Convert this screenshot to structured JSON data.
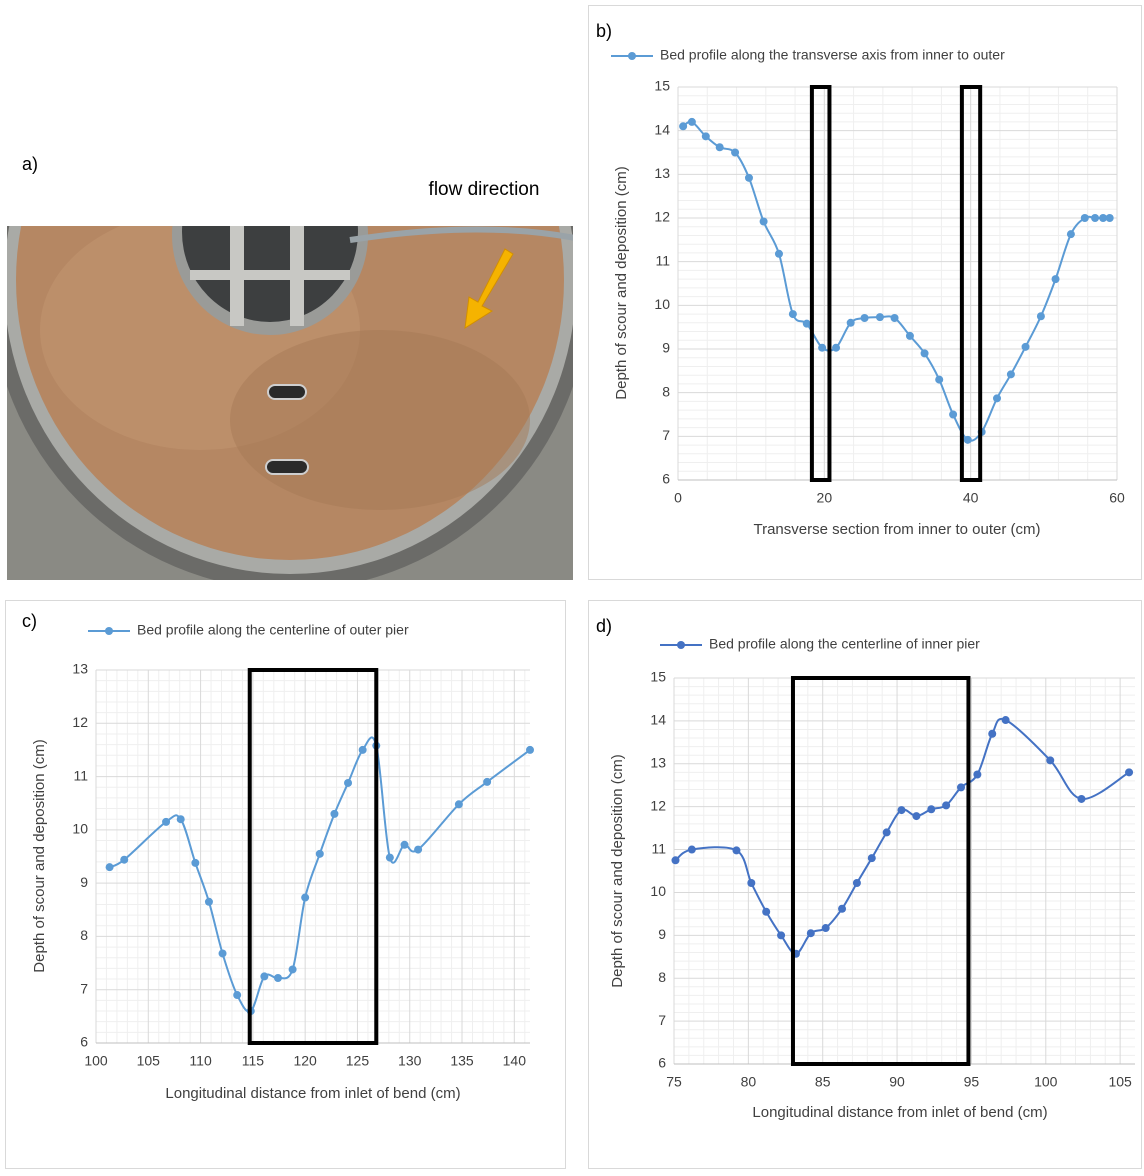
{
  "panel_a": {
    "label": "a)",
    "annotation": "flow direction"
  },
  "chart_data": [
    {
      "type": "line",
      "label": "b)",
      "x_label": "Transverse section from inner to outer (cm)",
      "y_label": "Depth of scour and deposition (cm)",
      "x": [
        0.7,
        1.9,
        3.8,
        5.7,
        7.8,
        9.7,
        11.7,
        13.8,
        15.7,
        17.6,
        19.7,
        21.6,
        23.6,
        25.5,
        27.6,
        29.6,
        31.7,
        33.7,
        35.7,
        37.6,
        39.6,
        41.5,
        43.6,
        45.5,
        47.5,
        49.6,
        51.6,
        53.7,
        55.6,
        57.0,
        58.1,
        59.0
      ],
      "series": [
        {
          "name": "Bed profile along the transverse axis from inner to outer",
          "color": "#5b9bd5",
          "values": [
            14.1,
            14.2,
            13.87,
            13.62,
            13.5,
            12.92,
            11.92,
            11.18,
            9.8,
            9.58,
            9.03,
            9.03,
            9.6,
            9.71,
            9.73,
            9.71,
            9.3,
            8.9,
            8.3,
            7.5,
            6.92,
            7.1,
            7.87,
            8.42,
            9.05,
            9.75,
            10.6,
            11.63,
            12.0,
            12.0,
            12.0,
            12.0
          ]
        }
      ],
      "xlim": [
        0,
        60
      ],
      "xticks": [
        0,
        20,
        40,
        60
      ],
      "ylim": [
        6,
        15
      ],
      "yticks": [
        6,
        7,
        8,
        9,
        10,
        11,
        12,
        13,
        14,
        15
      ],
      "grid": true,
      "minor_grid": true,
      "smooth": true,
      "highlights": [
        [
          18.3,
          20.7
        ],
        [
          38.8,
          41.3
        ]
      ]
    },
    {
      "type": "line",
      "label": "c)",
      "x_label": "Longitudinal distance from inlet of bend (cm)",
      "y_label": "Depth of scour and deposition (cm)",
      "x": [
        101.3,
        102.7,
        106.7,
        108.1,
        109.5,
        110.8,
        112.1,
        113.5,
        114.8,
        116.1,
        117.4,
        118.8,
        120.0,
        121.4,
        122.8,
        124.1,
        125.5,
        126.8,
        128.1,
        129.5,
        130.8,
        134.7,
        137.4,
        141.5
      ],
      "series": [
        {
          "name": "Bed profile along the centerline of outer pier",
          "color": "#5b9bd5",
          "values": [
            9.3,
            9.44,
            10.15,
            10.2,
            9.38,
            8.65,
            7.68,
            6.9,
            6.6,
            7.25,
            7.22,
            7.38,
            8.73,
            9.55,
            10.3,
            10.88,
            11.5,
            11.58,
            9.48,
            9.72,
            9.63,
            10.48,
            10.9,
            11.5
          ]
        }
      ],
      "xlim": [
        100,
        141.5
      ],
      "xticks": [
        100,
        105,
        110,
        115,
        120,
        125,
        130,
        135,
        140
      ],
      "ylim": [
        6,
        13
      ],
      "yticks": [
        6,
        7,
        8,
        9,
        10,
        11,
        12,
        13
      ],
      "grid": true,
      "minor_grid": true,
      "smooth": true,
      "highlights": [
        [
          114.7,
          126.8
        ]
      ]
    },
    {
      "type": "line",
      "label": "d)",
      "x_label": "Longitudinal distance from inlet of bend (cm)",
      "y_label": "Depth of scour and deposition (cm)",
      "x": [
        75.1,
        76.2,
        79.2,
        80.2,
        81.2,
        82.2,
        83.2,
        84.2,
        85.2,
        86.3,
        87.3,
        88.3,
        89.3,
        90.3,
        91.3,
        92.3,
        93.3,
        94.3,
        95.4,
        96.4,
        97.3,
        100.3,
        102.4,
        105.6
      ],
      "series": [
        {
          "name": "Bed profile along the centerline of inner pier",
          "color": "#4472c4",
          "values": [
            10.75,
            11.0,
            10.98,
            10.22,
            9.55,
            9.0,
            8.57,
            9.05,
            9.17,
            9.62,
            10.22,
            10.8,
            11.4,
            11.92,
            11.78,
            11.94,
            12.03,
            12.45,
            12.75,
            13.7,
            14.02,
            13.08,
            12.18,
            12.8
          ]
        }
      ],
      "xlim": [
        75,
        106
      ],
      "xticks": [
        75,
        80,
        85,
        90,
        95,
        100,
        105
      ],
      "ylim": [
        6,
        15
      ],
      "yticks": [
        6,
        7,
        8,
        9,
        10,
        11,
        12,
        13,
        14,
        15
      ],
      "grid": true,
      "minor_grid": true,
      "smooth": true,
      "highlights": [
        [
          83.0,
          94.8
        ]
      ]
    }
  ]
}
